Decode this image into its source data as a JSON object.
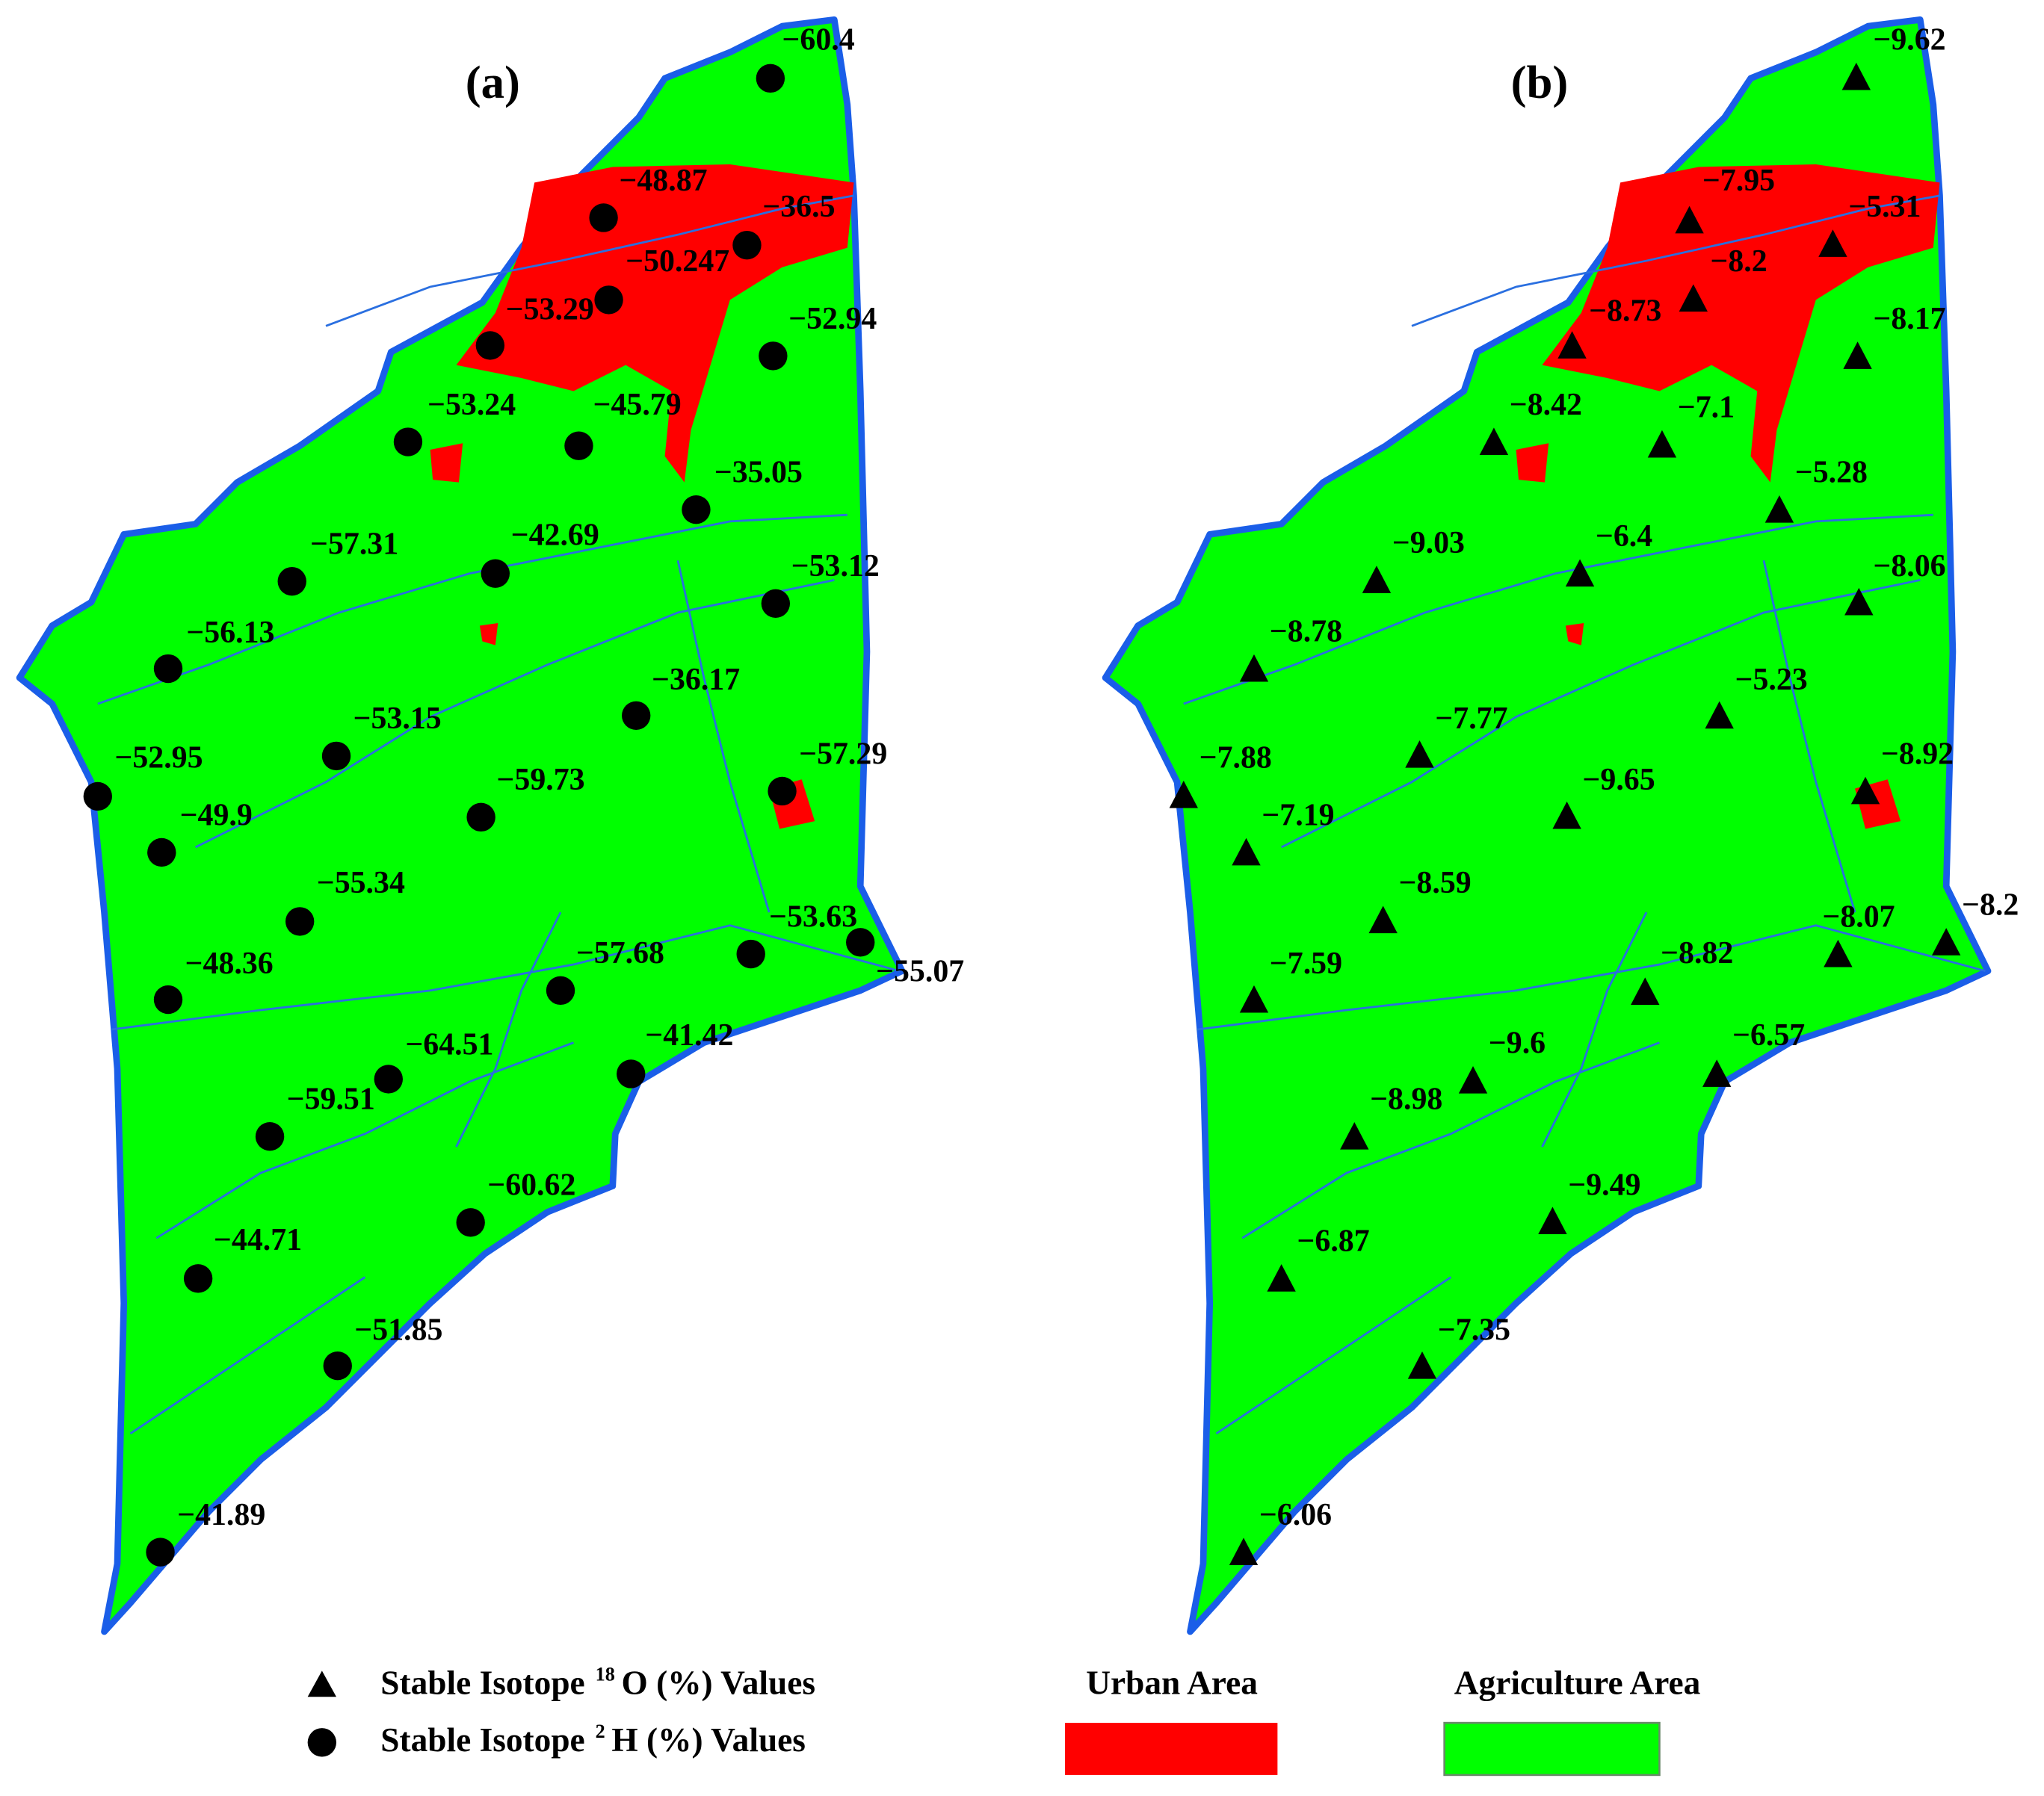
{
  "panels": [
    {
      "title": "(a)",
      "points": [
        "−60.4",
        "−48.87",
        "−36.5",
        "−50.247",
        "−53.29",
        "−52.94",
        "−53.24",
        "−45.79",
        "−35.05",
        "−57.31",
        "−42.69",
        "−53.12",
        "−56.13",
        "−36.17",
        "−53.15",
        "−52.95",
        "−57.29",
        "−59.73",
        "−49.9",
        "−55.34",
        "−53.63",
        "−55.07",
        "−48.36",
        "−57.68",
        "−64.51",
        "−41.42",
        "−59.51",
        "−60.62",
        "−44.71",
        "−51.85",
        "−41.89"
      ]
    },
    {
      "title": "(b)",
      "points": [
        "−9.62",
        "−7.95",
        "−5.31",
        "−8.2",
        "−8.73",
        "−8.17",
        "−8.42",
        "−7.1",
        "−5.28",
        "−9.03",
        "−6.4",
        "−8.06",
        "−8.78",
        "−5.23",
        "−7.77",
        "−7.88",
        "−8.92",
        "−9.65",
        "−7.19",
        "−8.59",
        "−8.07",
        "−8.2",
        "−7.59",
        "−8.82",
        "−9.6",
        "−6.57",
        "−8.98",
        "−9.49",
        "−6.87",
        "−7.35",
        "−6.06"
      ]
    }
  ],
  "legend": {
    "markers": [
      {
        "prefix": "Stable Isotope",
        "sup": "18",
        "suffix": "O (%) Values"
      },
      {
        "prefix": "Stable Isotope",
        "sup": "2",
        "suffix": "H (%) Values"
      }
    ],
    "areas": [
      "Urban Area",
      "Agriculture Area"
    ]
  }
}
